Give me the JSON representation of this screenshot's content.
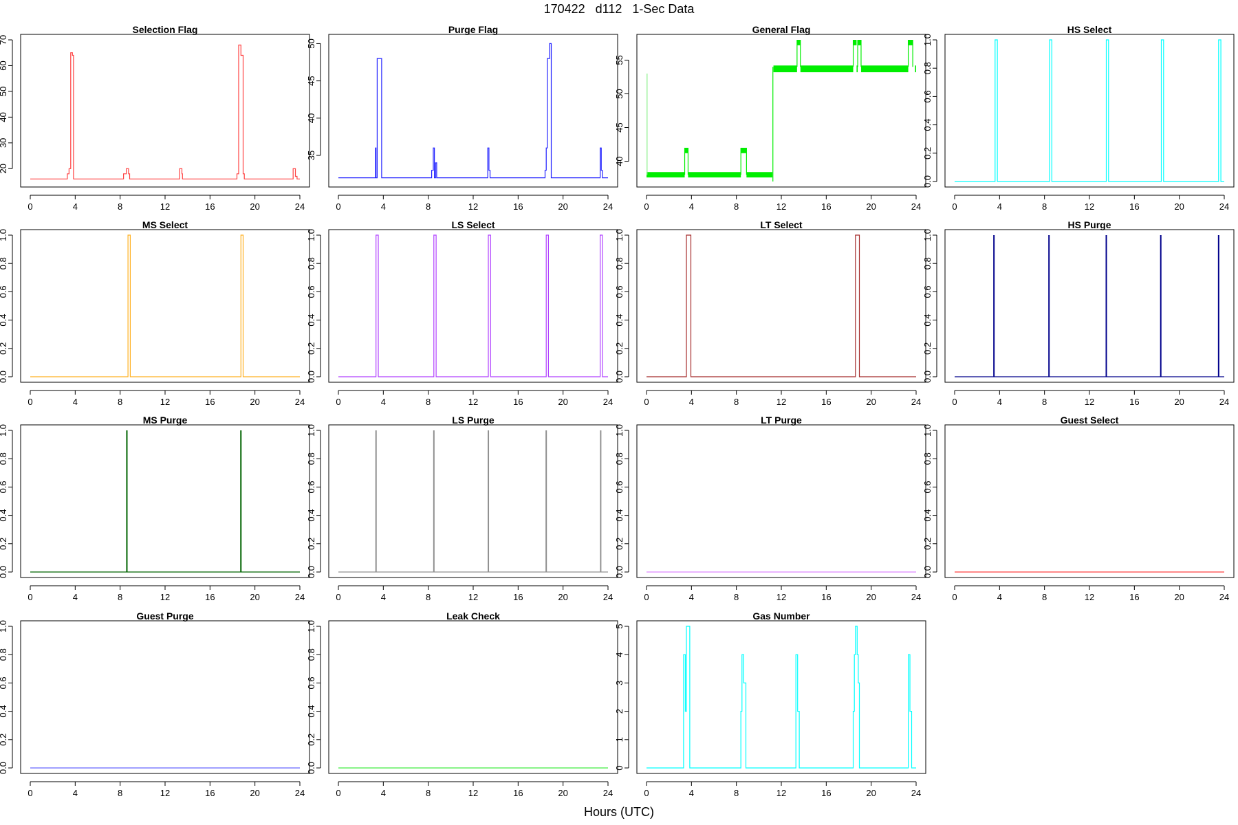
{
  "page": {
    "title": "170422   d112   1-Sec Data",
    "xlabel": "Hours (UTC)"
  },
  "chart_data": [
    {
      "type": "line",
      "title": "Selection Flag",
      "color": "#ff4040",
      "xlim": [
        0,
        24
      ],
      "xticks": [
        0,
        4,
        8,
        12,
        16,
        20,
        24
      ],
      "ylim": [
        15,
        70
      ],
      "yticks": [
        20,
        30,
        40,
        50,
        60,
        70
      ],
      "x": [
        0,
        3.3,
        3.3,
        3.45,
        3.45,
        3.6,
        3.6,
        3.75,
        3.75,
        3.85,
        3.85,
        8.3,
        8.3,
        8.55,
        8.55,
        8.75,
        8.75,
        8.85,
        8.85,
        13.3,
        13.3,
        13.5,
        13.5,
        13.55,
        13.55,
        18.4,
        18.4,
        18.55,
        18.55,
        18.75,
        18.75,
        18.95,
        18.95,
        19.05,
        19.05,
        23.4,
        23.4,
        23.6,
        23.6,
        23.75,
        23.75,
        24
      ],
      "y": [
        16,
        16,
        18,
        18,
        20,
        20,
        65,
        65,
        64,
        64,
        16,
        16,
        18,
        18,
        20,
        20,
        18,
        18,
        16,
        16,
        20,
        20,
        18,
        18,
        16,
        16,
        18,
        18,
        68,
        68,
        64,
        64,
        18,
        18,
        16,
        16,
        20,
        20,
        17,
        17,
        16,
        16
      ]
    },
    {
      "type": "line",
      "title": "Purge Flag",
      "color": "#2020ff",
      "xlim": [
        0,
        24
      ],
      "xticks": [
        0,
        4,
        8,
        12,
        16,
        20,
        24
      ],
      "ylim": [
        31.5,
        50.5
      ],
      "yticks": [
        35,
        40,
        45,
        50
      ],
      "x": [
        0,
        3.3,
        3.3,
        3.35,
        3.35,
        3.45,
        3.45,
        3.55,
        3.55,
        3.85,
        3.85,
        8.3,
        8.3,
        8.45,
        8.45,
        8.55,
        8.55,
        8.65,
        8.65,
        8.75,
        8.75,
        13.3,
        13.3,
        13.4,
        13.4,
        13.5,
        13.5,
        18.4,
        18.4,
        18.5,
        18.5,
        18.6,
        18.6,
        18.8,
        18.8,
        18.95,
        18.95,
        23.3,
        23.3,
        23.4,
        23.4,
        23.5,
        23.5,
        24
      ],
      "y": [
        32,
        32,
        36,
        36,
        32,
        32,
        48,
        48,
        48,
        48,
        32,
        32,
        33,
        33,
        36,
        36,
        32,
        32,
        34,
        34,
        32,
        32,
        36,
        36,
        33,
        33,
        32,
        32,
        33,
        33,
        36,
        36,
        48,
        48,
        50,
        50,
        32,
        32,
        36,
        36,
        33,
        33,
        32,
        32
      ]
    },
    {
      "type": "band",
      "title": "General Flag",
      "color": "#00ee00",
      "xlim": [
        0,
        24
      ],
      "xticks": [
        0,
        4,
        8,
        12,
        16,
        20,
        24
      ],
      "ylim": [
        37,
        58
      ],
      "yticks": [
        40,
        45,
        50,
        55
      ],
      "spikes": [
        {
          "x": 0.05,
          "y0": 38,
          "y1": 53
        }
      ],
      "bands": [
        {
          "x0": 0,
          "x1": 3.4,
          "y0": 37.6,
          "y1": 38.4
        },
        {
          "x0": 3.4,
          "x1": 3.7,
          "y0": 41.2,
          "y1": 42
        },
        {
          "x0": 3.7,
          "x1": 8.4,
          "y0": 37.6,
          "y1": 38.4
        },
        {
          "x0": 8.4,
          "x1": 8.9,
          "y0": 41.2,
          "y1": 42
        },
        {
          "x0": 8.9,
          "x1": 11.2,
          "y0": 37.6,
          "y1": 38.4
        },
        {
          "x0": 11.3,
          "x1": 13.4,
          "y0": 53.2,
          "y1": 54.2
        },
        {
          "x0": 13.4,
          "x1": 13.7,
          "y0": 57.2,
          "y1": 58
        },
        {
          "x0": 13.7,
          "x1": 18.4,
          "y0": 53.2,
          "y1": 54.2
        },
        {
          "x0": 18.4,
          "x1": 18.7,
          "y0": 57.2,
          "y1": 58
        },
        {
          "x0": 18.7,
          "x1": 18.8,
          "y0": 53.2,
          "y1": 54.2
        },
        {
          "x0": 18.8,
          "x1": 19.1,
          "y0": 57.2,
          "y1": 58
        },
        {
          "x0": 19.1,
          "x1": 23.3,
          "y0": 53.2,
          "y1": 54.2
        },
        {
          "x0": 23.3,
          "x1": 23.7,
          "y0": 57.2,
          "y1": 58
        },
        {
          "x0": 23.9,
          "x1": 24,
          "y0": 53.2,
          "y1": 54.2
        }
      ],
      "steps": [
        {
          "x": 3.4,
          "y0": 38,
          "y1": 42
        },
        {
          "x": 3.7,
          "y0": 38,
          "y1": 42
        },
        {
          "x": 8.4,
          "y0": 38,
          "y1": 42
        },
        {
          "x": 8.9,
          "y0": 38,
          "y1": 42
        },
        {
          "x": 11.25,
          "y0": 37,
          "y1": 54
        },
        {
          "x": 13.4,
          "y0": 54,
          "y1": 58
        },
        {
          "x": 13.7,
          "y0": 54,
          "y1": 58
        },
        {
          "x": 18.4,
          "y0": 54,
          "y1": 58
        },
        {
          "x": 18.8,
          "y0": 54,
          "y1": 58
        },
        {
          "x": 19.1,
          "y0": 54,
          "y1": 58
        },
        {
          "x": 23.3,
          "y0": 54,
          "y1": 58
        },
        {
          "x": 23.7,
          "y0": 54,
          "y1": 58
        }
      ]
    },
    {
      "type": "pulse",
      "title": "HS Select",
      "color": "#00ffff",
      "xlim": [
        0,
        24
      ],
      "xticks": [
        0,
        4,
        8,
        12,
        16,
        20,
        24
      ],
      "ylim": [
        0,
        1
      ],
      "yticks": [
        "0.0",
        "0.2",
        "0.4",
        "0.6",
        "0.8",
        "1.0"
      ],
      "pulses": [
        [
          3.6,
          3.8
        ],
        [
          8.45,
          8.65
        ],
        [
          13.5,
          13.7
        ],
        [
          18.4,
          18.6
        ],
        [
          23.5,
          23.7
        ]
      ]
    },
    {
      "type": "pulse",
      "title": "MS Select",
      "color": "#ffb020",
      "xlim": [
        0,
        24
      ],
      "xticks": [
        0,
        4,
        8,
        12,
        16,
        20,
        24
      ],
      "ylim": [
        0,
        1
      ],
      "yticks": [
        "0.0",
        "0.2",
        "0.4",
        "0.6",
        "0.8",
        "1.0"
      ],
      "pulses": [
        [
          8.7,
          8.9
        ],
        [
          18.75,
          18.95
        ]
      ]
    },
    {
      "type": "pulse",
      "title": "LS Select",
      "color": "#b040ff",
      "xlim": [
        0,
        24
      ],
      "xticks": [
        0,
        4,
        8,
        12,
        16,
        20,
        24
      ],
      "ylim": [
        0,
        1
      ],
      "yticks": [
        "0.0",
        "0.2",
        "0.4",
        "0.6",
        "0.8",
        "1.0"
      ],
      "pulses": [
        [
          3.35,
          3.55
        ],
        [
          8.5,
          8.7
        ],
        [
          13.35,
          13.55
        ],
        [
          18.5,
          18.7
        ],
        [
          23.3,
          23.5
        ]
      ]
    },
    {
      "type": "pulse",
      "title": "LT Select",
      "color": "#a52a2a",
      "xlim": [
        0,
        24
      ],
      "xticks": [
        0,
        4,
        8,
        12,
        16,
        20,
        24
      ],
      "ylim": [
        0,
        1
      ],
      "yticks": [
        "0.0",
        "0.2",
        "0.4",
        "0.6",
        "0.8",
        "1.0"
      ],
      "pulses": [
        [
          3.55,
          3.95
        ],
        [
          18.6,
          18.95
        ]
      ]
    },
    {
      "type": "spike",
      "title": "HS Purge",
      "color": "#00008b",
      "xlim": [
        0,
        24
      ],
      "xticks": [
        0,
        4,
        8,
        12,
        16,
        20,
        24
      ],
      "ylim": [
        0,
        1
      ],
      "yticks": [
        "0.0",
        "0.2",
        "0.4",
        "0.6",
        "0.8",
        "1.0"
      ],
      "spikes": [
        3.5,
        8.4,
        13.5,
        18.35,
        23.5
      ]
    },
    {
      "type": "spike",
      "title": "MS Purge",
      "color": "#006400",
      "xlim": [
        0,
        24
      ],
      "xticks": [
        0,
        4,
        8,
        12,
        16,
        20,
        24
      ],
      "ylim": [
        0,
        1
      ],
      "yticks": [
        "0.0",
        "0.2",
        "0.4",
        "0.6",
        "0.8",
        "1.0"
      ],
      "spikes": [
        8.6,
        18.75
      ]
    },
    {
      "type": "spike",
      "title": "LS Purge",
      "color": "#909090",
      "xlim": [
        0,
        24
      ],
      "xticks": [
        0,
        4,
        8,
        12,
        16,
        20,
        24
      ],
      "ylim": [
        0,
        1
      ],
      "yticks": [
        "0.0",
        "0.2",
        "0.4",
        "0.6",
        "0.8",
        "1.0"
      ],
      "spikes": [
        3.35,
        8.5,
        13.35,
        18.5,
        23.35
      ]
    },
    {
      "type": "flat",
      "title": "LT Purge",
      "color": "#dd88ff",
      "xlim": [
        0,
        24
      ],
      "xticks": [
        0,
        4,
        8,
        12,
        16,
        20,
        24
      ],
      "ylim": [
        0,
        1
      ],
      "yticks": [
        "0.0",
        "0.2",
        "0.4",
        "0.6",
        "0.8",
        "1.0"
      ],
      "value": 0
    },
    {
      "type": "flat",
      "title": "Guest Select",
      "color": "#ff4040",
      "xlim": [
        0,
        24
      ],
      "xticks": [
        0,
        4,
        8,
        12,
        16,
        20,
        24
      ],
      "ylim": [
        0,
        1
      ],
      "yticks": [
        "0.0",
        "0.2",
        "0.4",
        "0.6",
        "0.8",
        "1.0"
      ],
      "value": 0
    },
    {
      "type": "flat",
      "title": "Guest Purge",
      "color": "#6666ff",
      "xlim": [
        0,
        24
      ],
      "xticks": [
        0,
        4,
        8,
        12,
        16,
        20,
        24
      ],
      "ylim": [
        0,
        1
      ],
      "yticks": [
        "0.0",
        "0.2",
        "0.4",
        "0.6",
        "0.8",
        "1.0"
      ],
      "value": 0
    },
    {
      "type": "flat",
      "title": "Leak Check",
      "color": "#40ee40",
      "xlim": [
        0,
        24
      ],
      "xticks": [
        0,
        4,
        8,
        12,
        16,
        20,
        24
      ],
      "ylim": [
        0,
        1
      ],
      "yticks": [
        "0.0",
        "0.2",
        "0.4",
        "0.6",
        "0.8",
        "1.0"
      ],
      "value": 0
    },
    {
      "type": "line",
      "title": "Gas Number",
      "color": "#00ffff",
      "xlim": [
        0,
        24
      ],
      "xticks": [
        0,
        4,
        8,
        12,
        16,
        20,
        24
      ],
      "ylim": [
        0,
        5
      ],
      "yticks": [
        0,
        1,
        2,
        3,
        4,
        5
      ],
      "x": [
        0,
        3.3,
        3.3,
        3.45,
        3.45,
        3.55,
        3.55,
        3.7,
        3.7,
        3.85,
        3.85,
        8.4,
        8.4,
        8.5,
        8.5,
        8.65,
        8.65,
        8.75,
        8.75,
        8.85,
        8.85,
        13.3,
        13.3,
        13.45,
        13.45,
        13.6,
        13.6,
        18.4,
        18.4,
        18.5,
        18.5,
        18.6,
        18.6,
        18.75,
        18.75,
        18.85,
        18.85,
        18.95,
        18.95,
        23.3,
        23.3,
        23.45,
        23.45,
        23.6,
        23.6,
        24
      ],
      "y": [
        0,
        0,
        4,
        4,
        2,
        2,
        5,
        5,
        5,
        5,
        0,
        0,
        2,
        2,
        4,
        4,
        3,
        3,
        3,
        3,
        0,
        0,
        4,
        4,
        2,
        2,
        0,
        0,
        2,
        2,
        4,
        4,
        5,
        5,
        4,
        4,
        3,
        3,
        0,
        0,
        4,
        4,
        2,
        2,
        0,
        0
      ]
    }
  ]
}
